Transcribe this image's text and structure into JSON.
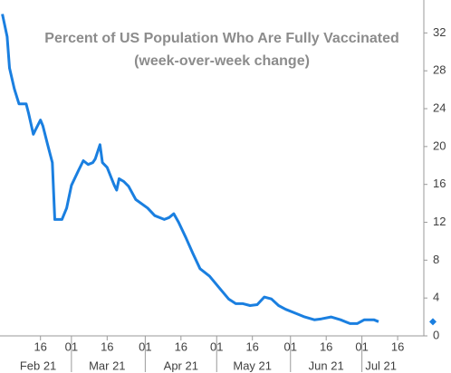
{
  "chart_data": {
    "type": "line",
    "title": "Percent of US Population Who Are Fully Vaccinated",
    "subtitle": "(week-over-week change)",
    "x": [
      "2021-01-31",
      "2021-02-02",
      "2021-02-03",
      "2021-02-05",
      "2021-02-07",
      "2021-02-10",
      "2021-02-11",
      "2021-02-13",
      "2021-02-14",
      "2021-02-16",
      "2021-02-17",
      "2021-02-19",
      "2021-02-21",
      "2021-02-22",
      "2021-02-25",
      "2021-02-27",
      "2021-03-01",
      "2021-03-04",
      "2021-03-06",
      "2021-03-08",
      "2021-03-10",
      "2021-03-11",
      "2021-03-13",
      "2021-03-14",
      "2021-03-16",
      "2021-03-19",
      "2021-03-20",
      "2021-03-21",
      "2021-03-23",
      "2021-03-25",
      "2021-03-28",
      "2021-04-02",
      "2021-04-05",
      "2021-04-09",
      "2021-04-11",
      "2021-04-13",
      "2021-04-15",
      "2021-04-18",
      "2021-04-21",
      "2021-04-24",
      "2021-04-28",
      "2021-05-02",
      "2021-05-06",
      "2021-05-09",
      "2021-05-12",
      "2021-05-15",
      "2021-05-18",
      "2021-05-21",
      "2021-05-24",
      "2021-05-27",
      "2021-05-30",
      "2021-06-03",
      "2021-06-07",
      "2021-06-11",
      "2021-06-14",
      "2021-06-18",
      "2021-06-22",
      "2021-06-26",
      "2021-06-29",
      "2021-07-02",
      "2021-07-06",
      "2021-07-08"
    ],
    "series": [
      {
        "name": "Week-over-week change",
        "color": "#1a7fe0",
        "values": [
          34.0,
          31.6,
          28.3,
          26.1,
          24.5,
          24.5,
          23.5,
          21.3,
          21.8,
          22.8,
          22.2,
          20.2,
          18.3,
          12.3,
          12.3,
          13.5,
          15.9,
          17.5,
          18.5,
          18.1,
          18.3,
          18.7,
          20.2,
          18.3,
          17.8,
          15.9,
          15.4,
          16.6,
          16.3,
          15.8,
          14.4,
          13.5,
          12.7,
          12.3,
          12.5,
          12.9,
          12.0,
          10.4,
          8.7,
          7.1,
          6.3,
          5.1,
          3.9,
          3.4,
          3.4,
          3.2,
          3.3,
          4.1,
          3.9,
          3.2,
          2.8,
          2.4,
          2.0,
          1.7,
          1.8,
          2.0,
          1.7,
          1.3,
          1.3,
          1.7,
          1.7,
          1.5
        ]
      }
    ],
    "xlim": [
      "2021-01-30",
      "2021-07-27"
    ],
    "xticks": [
      {
        "value": "2021-02-16",
        "label": "16"
      },
      {
        "value": "2021-03-01",
        "label": "01"
      },
      {
        "value": "2021-03-16",
        "label": "16"
      },
      {
        "value": "2021-04-01",
        "label": "01"
      },
      {
        "value": "2021-04-16",
        "label": "16"
      },
      {
        "value": "2021-05-01",
        "label": "01"
      },
      {
        "value": "2021-05-16",
        "label": "16"
      },
      {
        "value": "2021-06-01",
        "label": "01"
      },
      {
        "value": "2021-06-16",
        "label": "16"
      },
      {
        "value": "2021-07-01",
        "label": "01"
      },
      {
        "value": "2021-07-16",
        "label": "16"
      }
    ],
    "month_labels": [
      {
        "value": "2021-02-15",
        "label": "Feb 21"
      },
      {
        "value": "2021-03-16",
        "label": "Mar 21"
      },
      {
        "value": "2021-04-16",
        "label": "Apr 21"
      },
      {
        "value": "2021-05-16",
        "label": "May 21"
      },
      {
        "value": "2021-06-16",
        "label": "Jun 21"
      },
      {
        "value": "2021-07-09",
        "label": "Jul 21"
      }
    ],
    "ylim": [
      0,
      35
    ],
    "yticks": [
      0,
      4,
      8,
      12,
      16,
      20,
      24,
      28,
      32
    ],
    "y_axis_side": "right",
    "grid": false
  }
}
